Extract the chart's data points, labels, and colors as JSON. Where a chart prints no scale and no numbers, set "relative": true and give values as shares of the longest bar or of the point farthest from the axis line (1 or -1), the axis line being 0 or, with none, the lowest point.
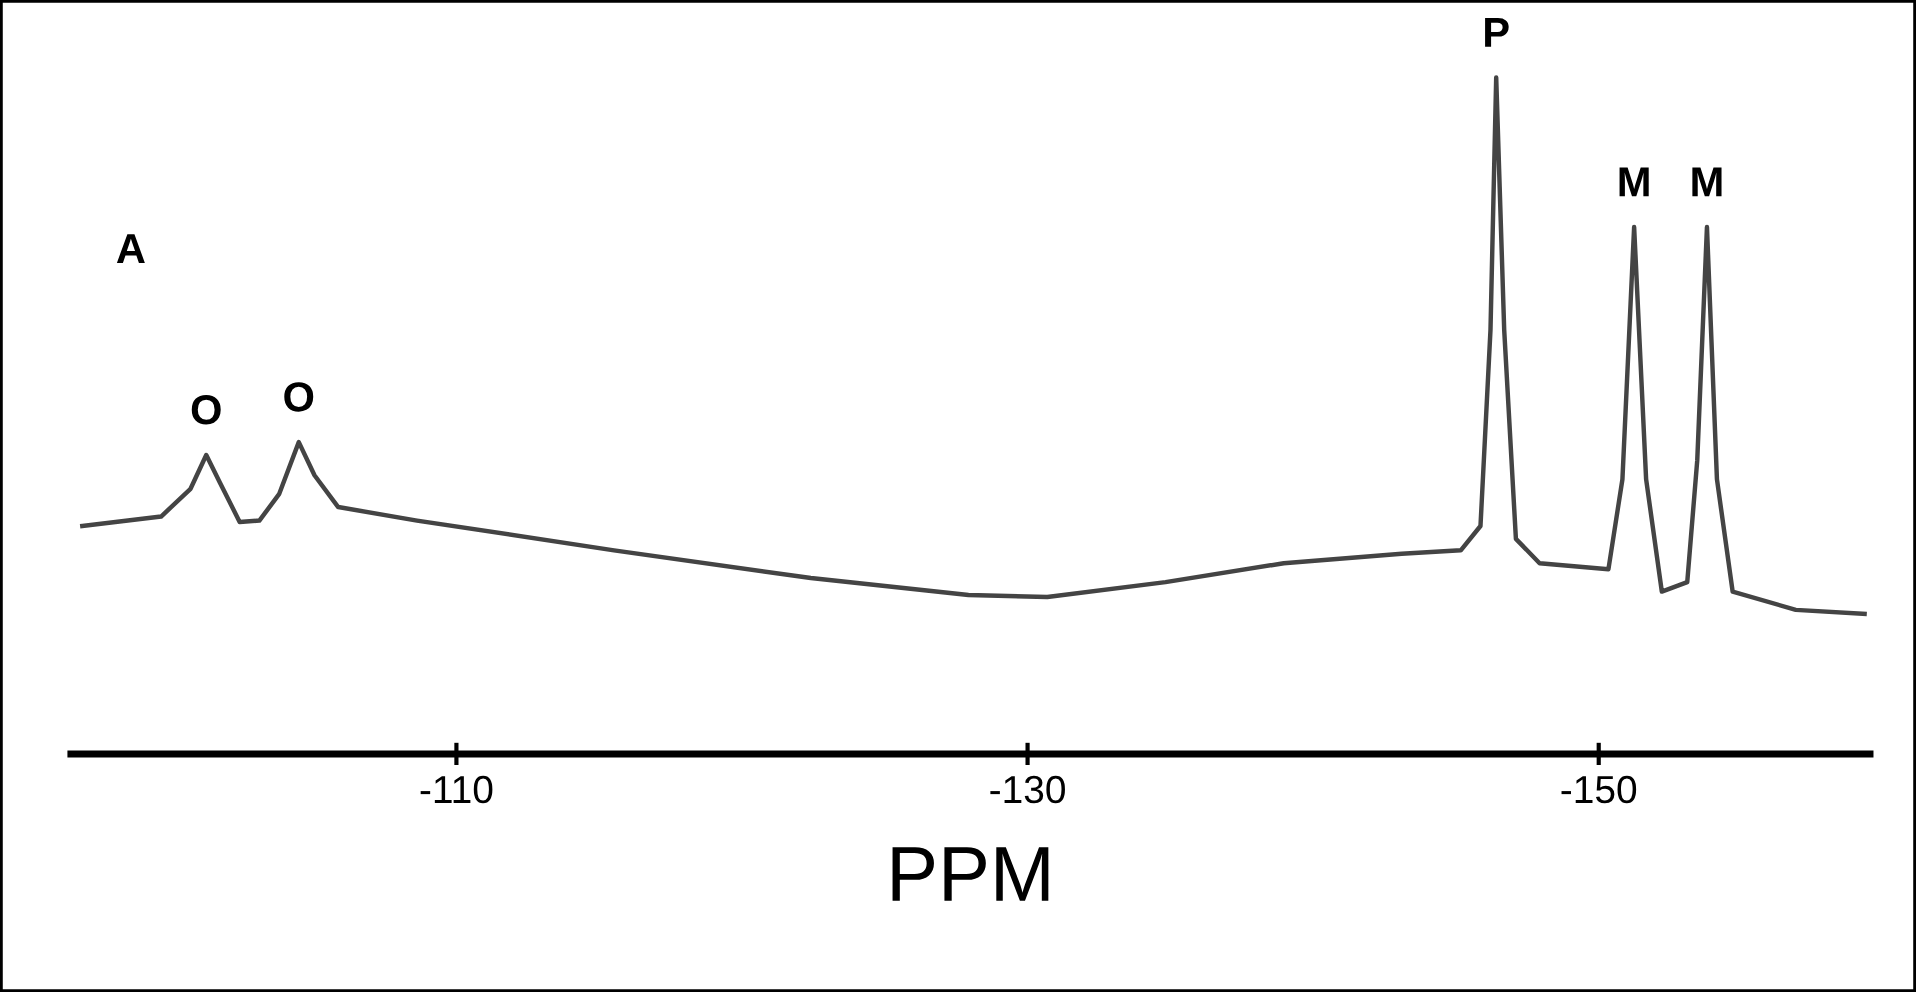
{
  "chart_data": {
    "type": "line",
    "relative": true,
    "xlabel": "PPM",
    "xlim": [
      -96.5,
      -159.5
    ],
    "xticks": [
      -110,
      -130,
      -150
    ],
    "grid": false,
    "marker": "none",
    "line_style": "solid",
    "x": [
      -96.9,
      -99.66,
      -100.69,
      -101.24,
      -101.72,
      -102.41,
      -103.1,
      -103.79,
      -104.48,
      -105.03,
      -105.86,
      -108.62,
      -115.52,
      -122.41,
      -127.93,
      -130.69,
      -134.83,
      -138.97,
      -143.1,
      -145.17,
      -145.86,
      -146.21,
      -146.41,
      -146.69,
      -147.1,
      -147.93,
      -150.34,
      -150.83,
      -151.24,
      -151.66,
      -152.21,
      -153.1,
      -153.45,
      -153.79,
      -154.14,
      -154.69,
      -156.9,
      -159.31
    ],
    "series": [
      {
        "color": "#444444",
        "values": [
          0.337,
          0.351,
          0.392,
          0.442,
          0.401,
          0.343,
          0.345,
          0.384,
          0.461,
          0.412,
          0.365,
          0.345,
          0.301,
          0.26,
          0.235,
          0.232,
          0.254,
          0.282,
          0.296,
          0.301,
          0.337,
          0.627,
          1.0,
          0.627,
          0.318,
          0.282,
          0.273,
          0.406,
          0.779,
          0.406,
          0.24,
          0.254,
          0.434,
          0.779,
          0.406,
          0.24,
          0.213,
          0.207
        ]
      }
    ],
    "annotations": [
      "A",
      {
        "text": "O",
        "x": -101.24,
        "y": 0.442
      },
      {
        "text": "O",
        "x": -104.48,
        "y": 0.461
      },
      {
        "text": "P",
        "x": -146.41,
        "y": 1.0
      },
      {
        "text": "M",
        "x": -151.24,
        "y": 0.779
      },
      {
        "text": "M",
        "x": -153.79,
        "y": 0.779
      }
    ]
  }
}
